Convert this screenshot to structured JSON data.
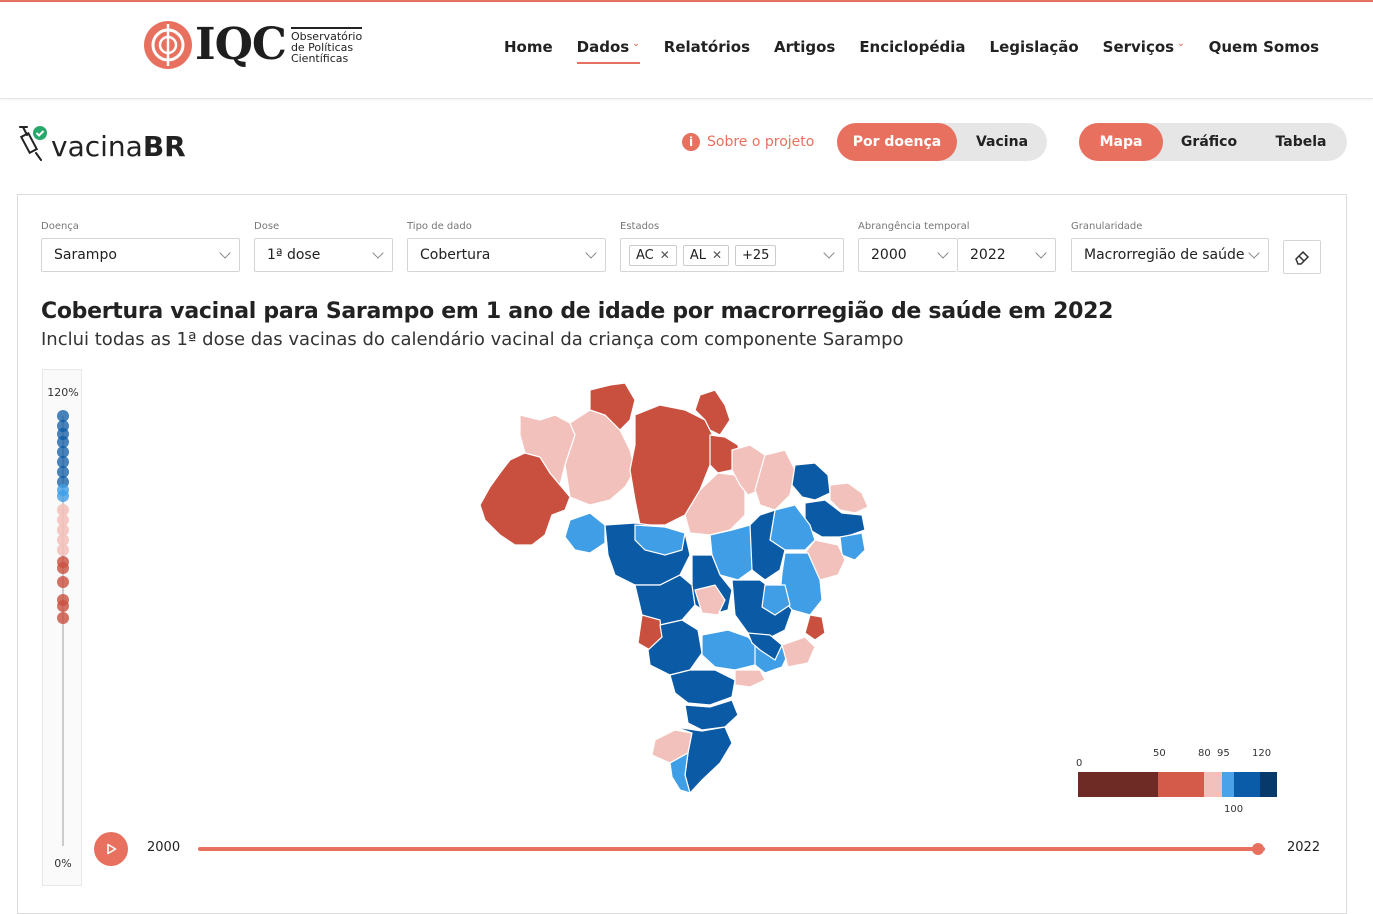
{
  "header": {
    "logo_text": "IQC",
    "logo_subtitle_1": "Observatório",
    "logo_subtitle_2": "de Políticas",
    "logo_subtitle_3": "Científicas",
    "nav": [
      "Home",
      "Dados",
      "Relatórios",
      "Artigos",
      "Enciclopédia",
      "Legislação",
      "Serviços",
      "Quem Somos"
    ],
    "active_nav": "Dados"
  },
  "app": {
    "logo_light": "vacina",
    "logo_bold": "BR",
    "about_label": "Sobre o projeto",
    "mode_tabs": [
      "Por doença",
      "Vacina"
    ],
    "mode_selected": "Por doença",
    "view_tabs": [
      "Mapa",
      "Gráfico",
      "Tabela"
    ],
    "view_selected": "Mapa"
  },
  "filters": {
    "doenca": {
      "label": "Doença",
      "value": "Sarampo"
    },
    "dose": {
      "label": "Dose",
      "value": "1ª dose"
    },
    "tipo": {
      "label": "Tipo de dado",
      "value": "Cobertura"
    },
    "estados": {
      "label": "Estados",
      "tags": [
        "AC",
        "AL"
      ],
      "more": "+25"
    },
    "temporal": {
      "label": "Abrangência temporal",
      "from": "2000",
      "to": "2022"
    },
    "granularidade": {
      "label": "Granularidade",
      "value": "Macrorregião de saúde"
    }
  },
  "title": "Cobertura vacinal para Sarampo em 1 ano de idade por macrorregião de saúde em 2022",
  "subtitle": "Inclui todas as 1ª dose das vacinas do calendário vacinal da criança com componente Sarampo",
  "vertical_scale": {
    "max_label": "120%",
    "min_label": "0%"
  },
  "legend": {
    "labels": [
      "0",
      "50",
      "80",
      "95",
      "120"
    ],
    "below_label": "100",
    "colors": [
      "#6e2a25",
      "#d45a4a",
      "#f3c1bb",
      "#4aa3e8",
      "#0a5ca8",
      "#08396b"
    ]
  },
  "timeline": {
    "start": "2000",
    "end": "2022"
  },
  "colors": {
    "accent": "#e8705f",
    "dark_red": "#c9503f",
    "pink": "#f3c1bb",
    "light_blue": "#3f9ee6",
    "dark_blue": "#0b5aa5"
  }
}
